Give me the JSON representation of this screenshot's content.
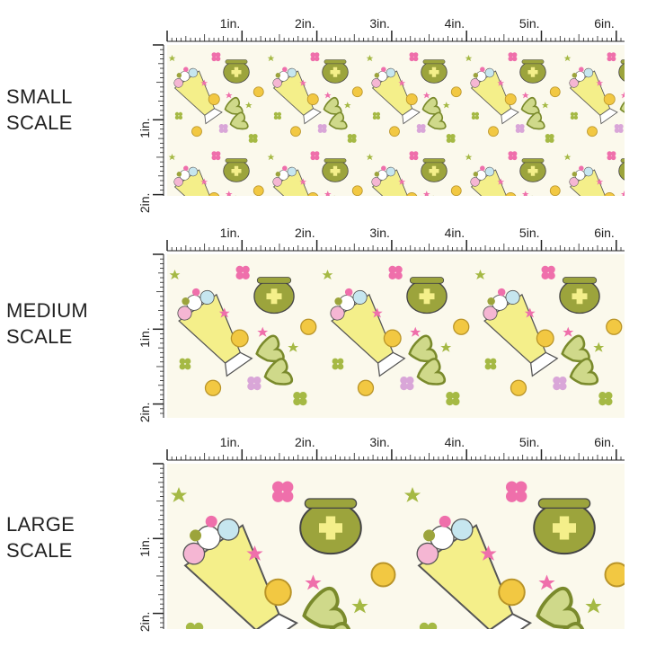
{
  "sections": [
    {
      "label_line1": "SMALL",
      "label_line2": "SCALE",
      "scale": 0.55
    },
    {
      "label_line1": "MEDIUM",
      "label_line2": "SCALE",
      "scale": 0.85
    },
    {
      "label_line1": "LARGE",
      "label_line2": "SCALE",
      "scale": 1.3
    }
  ],
  "ruler": {
    "horizontal_labels": [
      "1in.",
      "2in.",
      "3in.",
      "4in.",
      "5in.",
      "6in."
    ],
    "vertical_labels": [
      "1in.",
      "2in."
    ]
  },
  "colors": {
    "background": "#fbf9ec",
    "pot": "#9ca43c",
    "shake": "#f4ef8a",
    "coin": "#f2c842",
    "pink": "#ef6fab",
    "lavender": "#d9a6d8",
    "clover": "#a5b944"
  }
}
